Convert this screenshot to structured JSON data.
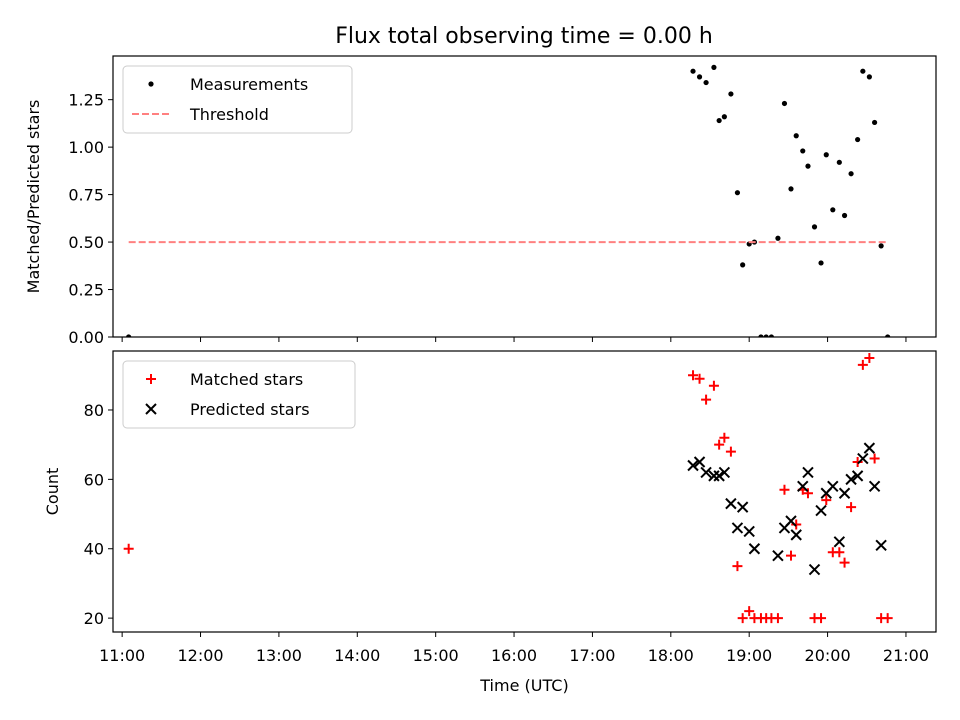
{
  "chart_data": [
    {
      "type": "scatter",
      "title": "Flux total observing time = 0.00 h",
      "xlabel": "",
      "ylabel": "Matched/Predicted stars",
      "xlim": [
        "10:53",
        "21:23"
      ],
      "ylim": [
        0,
        1.48
      ],
      "yticks": [
        0.0,
        0.25,
        0.5,
        0.75,
        1.0,
        1.25
      ],
      "ytick_labels": [
        "0.00",
        "0.25",
        "0.50",
        "0.75",
        "1.00",
        "1.25"
      ],
      "legend_position": "top-left",
      "grid": false,
      "series": [
        {
          "name": "Measurements",
          "kind": "scatter",
          "marker": "dot",
          "color": "#000000",
          "points": [
            [
              "11:05",
              0.0
            ],
            [
              "18:17",
              1.4
            ],
            [
              "18:22",
              1.37
            ],
            [
              "18:27",
              1.34
            ],
            [
              "18:33",
              1.42
            ],
            [
              "18:37",
              1.14
            ],
            [
              "18:41",
              1.16
            ],
            [
              "18:46",
              1.28
            ],
            [
              "18:51",
              0.76
            ],
            [
              "18:55",
              0.38
            ],
            [
              "19:00",
              0.49
            ],
            [
              "19:04",
              0.5
            ],
            [
              "19:09",
              0.0
            ],
            [
              "19:13",
              0.0
            ],
            [
              "19:17",
              0.0
            ],
            [
              "19:22",
              0.52
            ],
            [
              "19:27",
              1.23
            ],
            [
              "19:32",
              0.78
            ],
            [
              "19:36",
              1.06
            ],
            [
              "19:41",
              0.98
            ],
            [
              "19:45",
              0.9
            ],
            [
              "19:50",
              0.58
            ],
            [
              "19:55",
              0.39
            ],
            [
              "19:59",
              0.96
            ],
            [
              "20:04",
              0.67
            ],
            [
              "20:09",
              0.92
            ],
            [
              "20:13",
              0.64
            ],
            [
              "20:18",
              0.86
            ],
            [
              "20:23",
              1.04
            ],
            [
              "20:27",
              1.4
            ],
            [
              "20:32",
              1.37
            ],
            [
              "20:36",
              1.13
            ],
            [
              "20:41",
              0.48
            ],
            [
              "20:46",
              0.0
            ]
          ]
        },
        {
          "name": "Threshold",
          "kind": "line",
          "dash": "dashed",
          "color": "#ff8080",
          "points": [
            [
              "11:05",
              0.5
            ],
            [
              "20:46",
              0.5
            ]
          ]
        }
      ]
    },
    {
      "type": "scatter",
      "title": "",
      "xlabel": "Time (UTC)",
      "ylabel": "Count",
      "xlim": [
        "10:53",
        "21:23"
      ],
      "ylim": [
        16,
        97
      ],
      "yticks": [
        20,
        40,
        60,
        80
      ],
      "ytick_labels": [
        "20",
        "40",
        "60",
        "80"
      ],
      "xticks": [
        "11:00",
        "12:00",
        "13:00",
        "14:00",
        "15:00",
        "16:00",
        "17:00",
        "18:00",
        "19:00",
        "20:00",
        "21:00"
      ],
      "legend_position": "top-left",
      "grid": false,
      "series": [
        {
          "name": "Matched stars",
          "kind": "scatter",
          "marker": "plus",
          "color": "#ff0000",
          "points": [
            [
              "11:05",
              40
            ],
            [
              "18:17",
              90
            ],
            [
              "18:22",
              89
            ],
            [
              "18:27",
              83
            ],
            [
              "18:33",
              87
            ],
            [
              "18:37",
              70
            ],
            [
              "18:41",
              72
            ],
            [
              "18:46",
              68
            ],
            [
              "18:51",
              35
            ],
            [
              "18:55",
              20
            ],
            [
              "19:00",
              22
            ],
            [
              "19:04",
              20
            ],
            [
              "19:09",
              20
            ],
            [
              "19:13",
              20
            ],
            [
              "19:17",
              20
            ],
            [
              "19:22",
              20
            ],
            [
              "19:27",
              57
            ],
            [
              "19:32",
              38
            ],
            [
              "19:36",
              47
            ],
            [
              "19:41",
              57
            ],
            [
              "19:45",
              56
            ],
            [
              "19:50",
              20
            ],
            [
              "19:55",
              20
            ],
            [
              "19:59",
              54
            ],
            [
              "20:04",
              39
            ],
            [
              "20:09",
              39
            ],
            [
              "20:13",
              36
            ],
            [
              "20:18",
              52
            ],
            [
              "20:23",
              65
            ],
            [
              "20:27",
              93
            ],
            [
              "20:32",
              95
            ],
            [
              "20:36",
              66
            ],
            [
              "20:41",
              20
            ],
            [
              "20:46",
              20
            ]
          ]
        },
        {
          "name": "Predicted stars",
          "kind": "scatter",
          "marker": "x",
          "color": "#000000",
          "points": [
            [
              "18:17",
              64
            ],
            [
              "18:22",
              65
            ],
            [
              "18:27",
              62
            ],
            [
              "18:33",
              61
            ],
            [
              "18:37",
              61
            ],
            [
              "18:41",
              62
            ],
            [
              "18:46",
              53
            ],
            [
              "18:51",
              46
            ],
            [
              "18:55",
              52
            ],
            [
              "19:00",
              45
            ],
            [
              "19:04",
              40
            ],
            [
              "19:22",
              38
            ],
            [
              "19:27",
              46
            ],
            [
              "19:32",
              48
            ],
            [
              "19:36",
              44
            ],
            [
              "19:41",
              58
            ],
            [
              "19:45",
              62
            ],
            [
              "19:50",
              34
            ],
            [
              "19:55",
              51
            ],
            [
              "19:59",
              56
            ],
            [
              "20:04",
              58
            ],
            [
              "20:09",
              42
            ],
            [
              "20:13",
              56
            ],
            [
              "20:18",
              60
            ],
            [
              "20:23",
              61
            ],
            [
              "20:27",
              66
            ],
            [
              "20:32",
              69
            ],
            [
              "20:36",
              58
            ],
            [
              "20:41",
              41
            ]
          ]
        }
      ]
    }
  ]
}
